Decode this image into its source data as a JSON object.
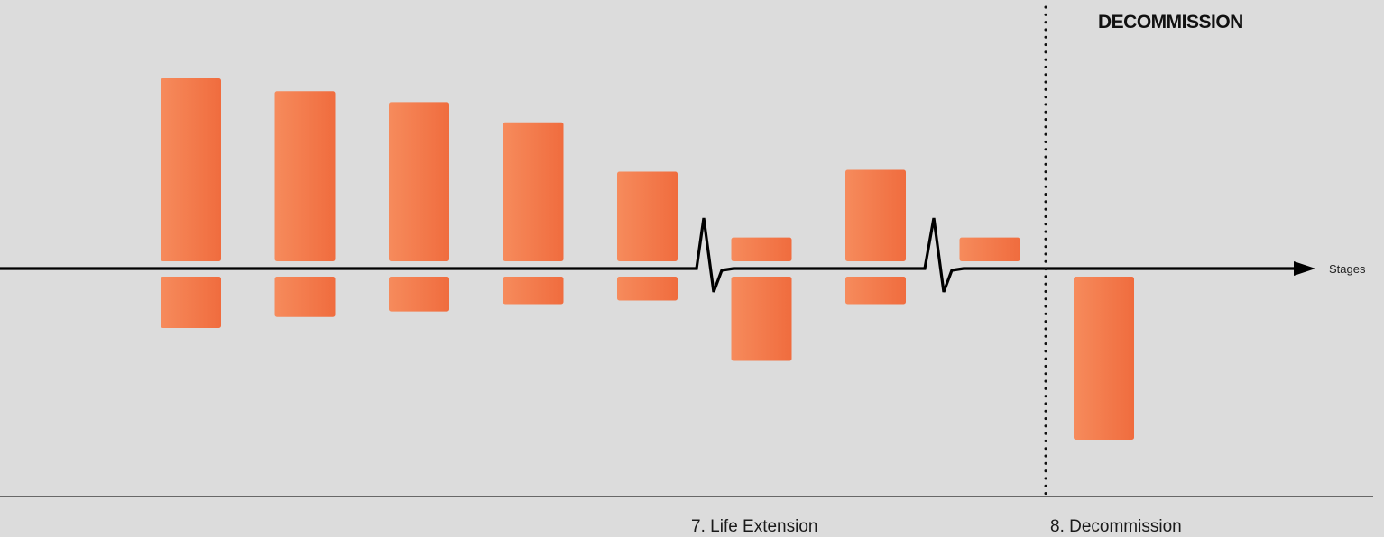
{
  "header": {
    "section_title": "DECOMMISSION"
  },
  "axis": {
    "label": "Stages"
  },
  "stage_labels": [
    "7. Life Extension",
    "8. Decommission"
  ],
  "colors": {
    "background": "#dcdcdc",
    "bar_light": "#f68b5c",
    "bar_dark": "#f06c3e",
    "axis": "#000000"
  },
  "chart_data": {
    "type": "bar",
    "ylim": [
      -100,
      100
    ],
    "groups": [
      {
        "above": 100,
        "below": 28
      },
      {
        "above": 93,
        "below": 22
      },
      {
        "above": 87,
        "below": 19
      },
      {
        "above": 76,
        "below": 15
      },
      {
        "above": 49,
        "below": 13
      },
      {
        "above": 13,
        "below": 46
      },
      {
        "above": 50,
        "below": 15
      },
      {
        "above": 13,
        "below": 0
      },
      {
        "above": 0,
        "below": 89
      }
    ]
  }
}
